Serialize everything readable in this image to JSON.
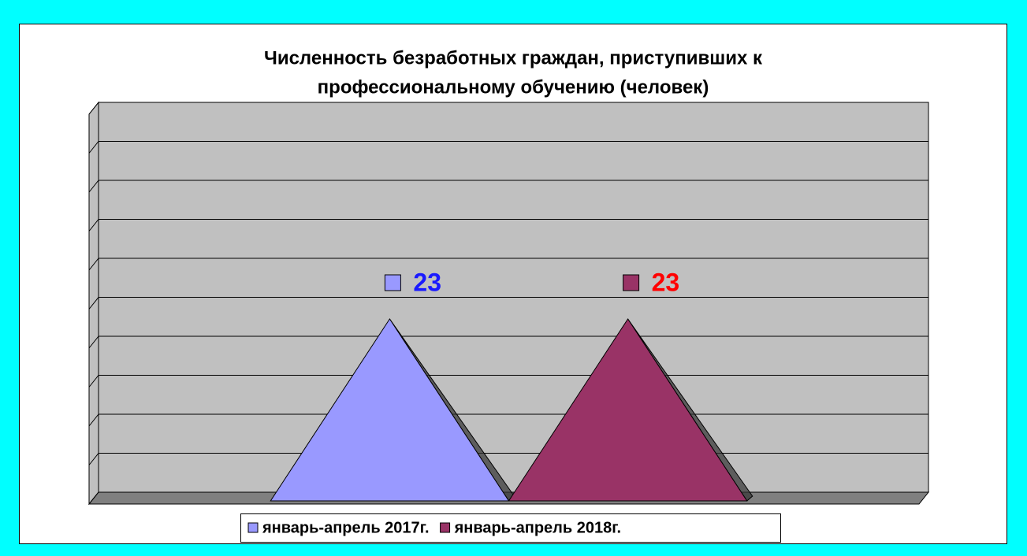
{
  "chart_data": {
    "type": "pyramid3d",
    "title": [
      "Численность безработных граждан, приступивших к",
      "профессиональному обучению (человек)"
    ],
    "categories": [
      null
    ],
    "series": [
      {
        "name": "январь-апрель 2017г.",
        "color": "#9999ff",
        "label_color": "#1a1aff",
        "values": [
          23
        ]
      },
      {
        "name": "январь-апрель 2018г.",
        "color": "#993366",
        "label_color": "#ff0000",
        "values": [
          23
        ]
      }
    ],
    "ylim": [
      0,
      50
    ],
    "yticks": [
      0,
      5,
      10,
      15,
      20,
      25,
      30,
      35,
      40,
      45,
      50
    ],
    "grid": true,
    "legend": "bottom"
  }
}
